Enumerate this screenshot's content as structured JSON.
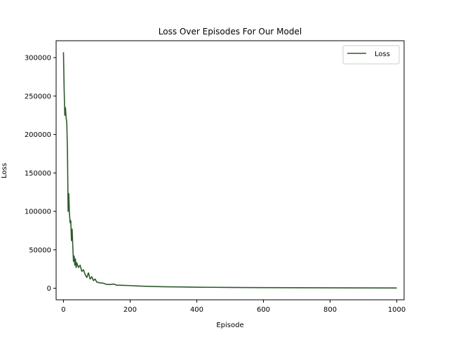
{
  "chart_data": {
    "type": "line",
    "title": "Loss Over Episodes For Our Model",
    "xlabel": "Episode",
    "ylabel": "Loss",
    "xlim": [
      -22,
      1022
    ],
    "ylim": [
      -15000,
      322000
    ],
    "xticks": [
      0,
      200,
      400,
      600,
      800,
      1000
    ],
    "yticks": [
      0,
      50000,
      100000,
      150000,
      200000,
      250000,
      300000
    ],
    "grid": false,
    "legend_position": "top-right",
    "series": [
      {
        "name": "Loss",
        "color": "#2e5a2e",
        "x": [
          0,
          2,
          4,
          6,
          8,
          10,
          12,
          14,
          16,
          18,
          20,
          22,
          24,
          26,
          28,
          30,
          32,
          34,
          36,
          38,
          40,
          45,
          50,
          55,
          60,
          65,
          70,
          75,
          80,
          85,
          90,
          95,
          100,
          110,
          120,
          130,
          140,
          150,
          160,
          180,
          200,
          220,
          250,
          300,
          350,
          400,
          450,
          500,
          600,
          700,
          800,
          900,
          1000
        ],
        "y": [
          307000,
          260000,
          225000,
          235000,
          222000,
          215000,
          180000,
          100000,
          123000,
          97000,
          85000,
          88000,
          62000,
          77000,
          55000,
          35000,
          42000,
          30000,
          38000,
          27000,
          33000,
          27000,
          30000,
          22000,
          24000,
          18000,
          14000,
          20000,
          12000,
          15000,
          10000,
          12000,
          8000,
          7000,
          6500,
          5000,
          4800,
          5500,
          4000,
          3800,
          3500,
          3000,
          2500,
          2000,
          1700,
          1400,
          1200,
          1000,
          800,
          650,
          550,
          450,
          400
        ]
      }
    ]
  }
}
